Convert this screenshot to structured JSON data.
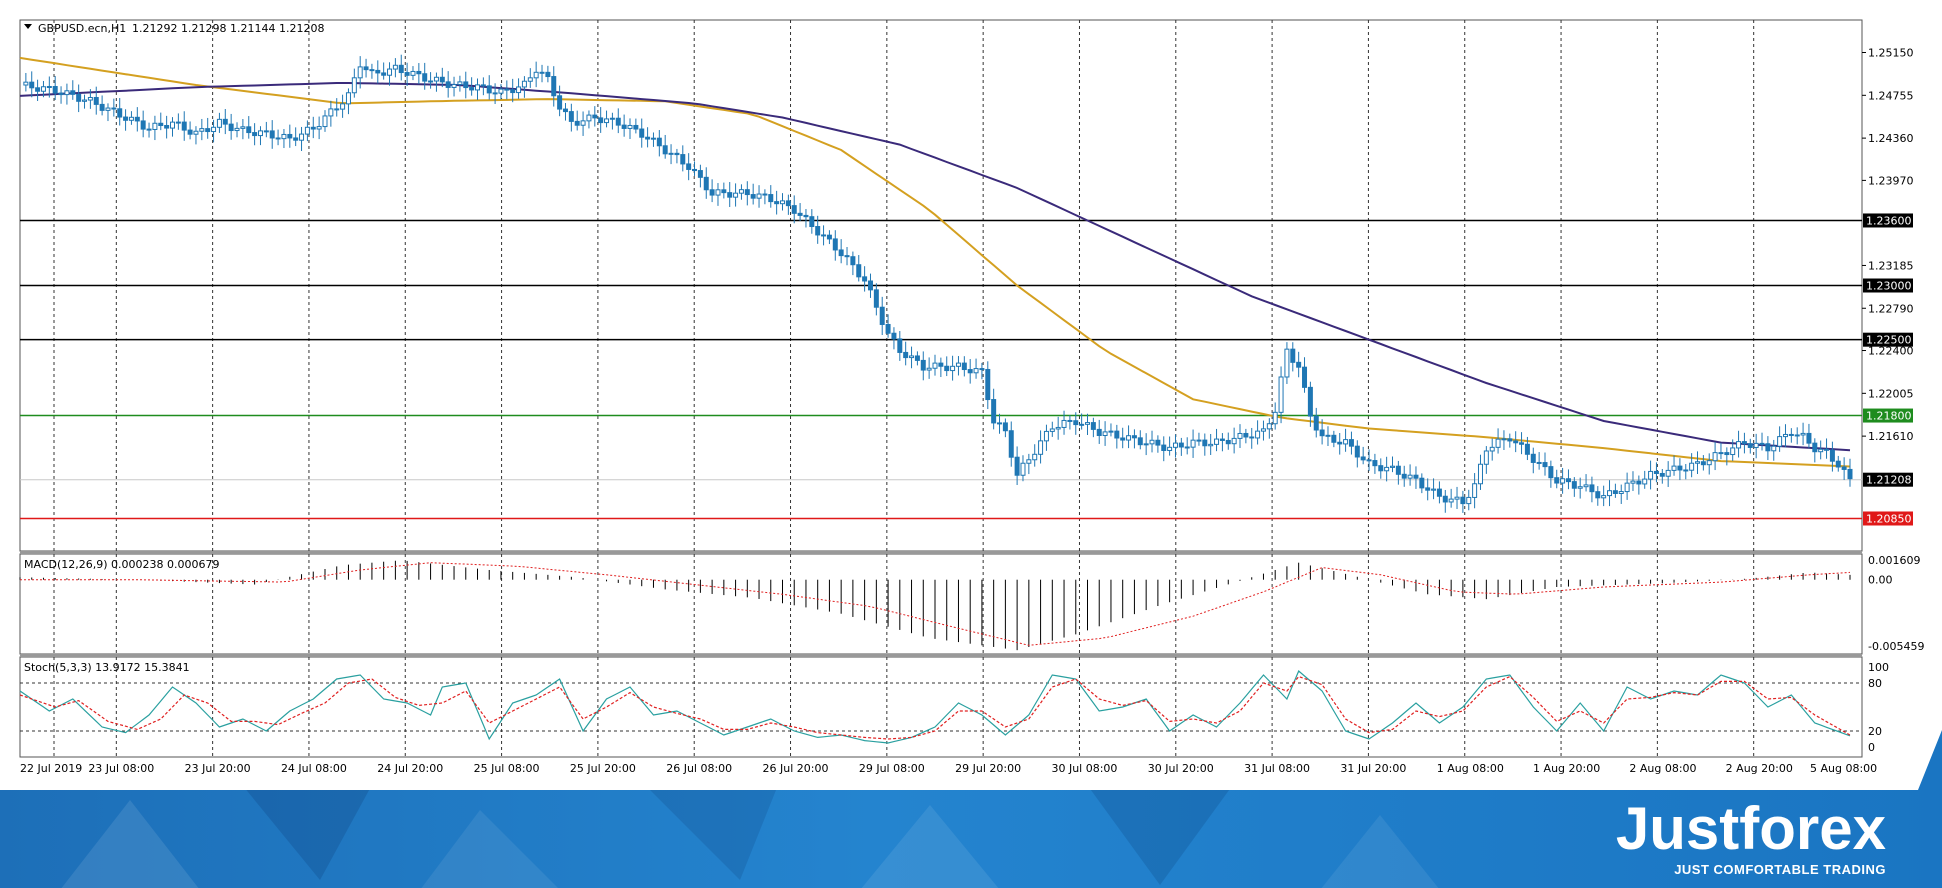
{
  "header": {
    "symbol": "GBPUSD.ecn,H1",
    "ohlc": "1.21292 1.21298 1.21144 1.21208"
  },
  "chart_data": [
    {
      "type": "candlestick",
      "title": "GBPUSD.ecn,H1  1.21292 1.21298 1.21144 1.21208",
      "ylim": [
        1.2055,
        1.2545
      ],
      "price_ticks": [
        1.2515,
        1.24755,
        1.2436,
        1.2397,
        1.23185,
        1.2279,
        1.224,
        1.22005,
        1.2161
      ],
      "price_tick_labels": [
        "1.25150",
        "1.24755",
        "1.24360",
        "1.23970",
        "1.23185",
        "1.22790",
        "1.22400",
        "1.22005",
        "1.21610"
      ],
      "time_labels": [
        "22 Jul 2019",
        "23 Jul 08:00",
        "23 Jul 20:00",
        "24 Jul 08:00",
        "24 Jul 20:00",
        "25 Jul 08:00",
        "25 Jul 20:00",
        "26 Jul 08:00",
        "26 Jul 20:00",
        "29 Jul 08:00",
        "29 Jul 20:00",
        "30 Jul 08:00",
        "30 Jul 20:00",
        "31 Jul 08:00",
        "31 Jul 20:00",
        "1 Aug 08:00",
        "1 Aug 20:00",
        "2 Aug 08:00",
        "2 Aug 20:00",
        "5 Aug 08:00"
      ],
      "levels": [
        {
          "value": 1.236,
          "label": "1.23600",
          "color": "#000000"
        },
        {
          "value": 1.23,
          "label": "1.23000",
          "color": "#000000"
        },
        {
          "value": 1.225,
          "label": "1.22500",
          "color": "#000000"
        },
        {
          "value": 1.218,
          "label": "1.21800",
          "color": "#1e8c1e"
        },
        {
          "value": 1.2085,
          "label": "1.20850",
          "color": "#e01818"
        }
      ],
      "current_price": {
        "value": 1.21208,
        "label": "1.21208"
      },
      "candle_color": "#1f77b4",
      "close_path": [
        [
          0,
          1.2485
        ],
        [
          6,
          1.248
        ],
        [
          12,
          1.247
        ],
        [
          18,
          1.2455
        ],
        [
          22,
          1.2445
        ],
        [
          26,
          1.245
        ],
        [
          30,
          1.244
        ],
        [
          34,
          1.245
        ],
        [
          38,
          1.2443
        ],
        [
          42,
          1.244
        ],
        [
          46,
          1.2435
        ],
        [
          50,
          1.2445
        ],
        [
          56,
          1.2475
        ],
        [
          58,
          1.2505
        ],
        [
          60,
          1.2495
        ],
        [
          64,
          1.25
        ],
        [
          70,
          1.249
        ],
        [
          74,
          1.2485
        ],
        [
          78,
          1.2483
        ],
        [
          82,
          1.2478
        ],
        [
          86,
          1.2485
        ],
        [
          88,
          1.25
        ],
        [
          90,
          1.249
        ],
        [
          92,
          1.2465
        ],
        [
          94,
          1.245
        ],
        [
          98,
          1.2455
        ],
        [
          102,
          1.245
        ],
        [
          106,
          1.244
        ],
        [
          110,
          1.2425
        ],
        [
          114,
          1.241
        ],
        [
          118,
          1.2385
        ],
        [
          124,
          1.2385
        ],
        [
          128,
          1.238
        ],
        [
          132,
          1.237
        ],
        [
          136,
          1.235
        ],
        [
          140,
          1.233
        ],
        [
          144,
          1.2305
        ],
        [
          148,
          1.2255
        ],
        [
          150,
          1.224
        ],
        [
          154,
          1.2225
        ],
        [
          160,
          1.2225
        ],
        [
          164,
          1.222
        ],
        [
          166,
          1.2175
        ],
        [
          168,
          1.2165
        ],
        [
          170,
          1.2125
        ],
        [
          172,
          1.214
        ],
        [
          174,
          1.2155
        ],
        [
          176,
          1.217
        ],
        [
          180,
          1.2175
        ],
        [
          184,
          1.2165
        ],
        [
          188,
          1.216
        ],
        [
          192,
          1.2155
        ],
        [
          196,
          1.215
        ],
        [
          200,
          1.2155
        ],
        [
          204,
          1.2155
        ],
        [
          208,
          1.216
        ],
        [
          212,
          1.2165
        ],
        [
          214,
          1.2185
        ],
        [
          216,
          1.224
        ],
        [
          218,
          1.2225
        ],
        [
          220,
          1.218
        ],
        [
          222,
          1.216
        ],
        [
          226,
          1.2155
        ],
        [
          230,
          1.2135
        ],
        [
          234,
          1.213
        ],
        [
          238,
          1.212
        ],
        [
          242,
          1.2105
        ],
        [
          246,
          1.21
        ],
        [
          248,
          1.2115
        ],
        [
          250,
          1.215
        ],
        [
          254,
          1.216
        ],
        [
          258,
          1.214
        ],
        [
          262,
          1.212
        ],
        [
          266,
          1.2115
        ],
        [
          270,
          1.2105
        ],
        [
          274,
          1.2115
        ],
        [
          278,
          1.2125
        ],
        [
          282,
          1.213
        ],
        [
          286,
          1.2135
        ],
        [
          290,
          1.2145
        ],
        [
          294,
          1.2155
        ],
        [
          298,
          1.215
        ],
        [
          302,
          1.2165
        ],
        [
          304,
          1.216
        ],
        [
          306,
          1.215
        ],
        [
          308,
          1.2145
        ],
        [
          310,
          1.2135
        ],
        [
          312,
          1.212
        ]
      ],
      "series": [
        {
          "name": "",
          "color": "#d4a020",
          "values": [
            [
              0,
              1.251
            ],
            [
              30,
              1.2485
            ],
            [
              55,
              1.2468
            ],
            [
              70,
              1.247
            ],
            [
              90,
              1.2472
            ],
            [
              110,
              1.247
            ],
            [
              125,
              1.2458
            ],
            [
              140,
              1.2425
            ],
            [
              155,
              1.237
            ],
            [
              170,
              1.23
            ],
            [
              185,
              1.224
            ],
            [
              200,
              1.2195
            ],
            [
              215,
              1.2178
            ],
            [
              230,
              1.2168
            ],
            [
              250,
              1.216
            ],
            [
              270,
              1.215
            ],
            [
              290,
              1.2138
            ],
            [
              312,
              1.2133
            ]
          ]
        },
        {
          "name": "",
          "color": "#3a2a7a",
          "values": [
            [
              0,
              1.2475
            ],
            [
              30,
              1.2483
            ],
            [
              55,
              1.2487
            ],
            [
              75,
              1.2485
            ],
            [
              95,
              1.2477
            ],
            [
              115,
              1.2468
            ],
            [
              130,
              1.2455
            ],
            [
              150,
              1.243
            ],
            [
              170,
              1.239
            ],
            [
              190,
              1.234
            ],
            [
              210,
              1.229
            ],
            [
              230,
              1.225
            ],
            [
              250,
              1.221
            ],
            [
              270,
              1.2175
            ],
            [
              290,
              1.2155
            ],
            [
              312,
              1.2148
            ]
          ]
        }
      ]
    },
    {
      "type": "bar",
      "title": "MACD(12,26,9) 0.000238 0.000679",
      "ylim": [
        -0.00595,
        0.00195
      ],
      "tick_labels": [
        "0.001609",
        "0.00",
        "-0.005459"
      ],
      "ticks": [
        0.001609,
        0.0,
        -0.005459
      ],
      "histogram": [
        [
          0,
          0.0002
        ],
        [
          20,
          0.0
        ],
        [
          40,
          -0.0004
        ],
        [
          55,
          0.0012
        ],
        [
          65,
          0.0016
        ],
        [
          80,
          0.0008
        ],
        [
          95,
          0.0002
        ],
        [
          110,
          -0.0008
        ],
        [
          125,
          -0.0015
        ],
        [
          140,
          -0.0028
        ],
        [
          155,
          -0.0048
        ],
        [
          170,
          -0.0058
        ],
        [
          180,
          -0.0045
        ],
        [
          195,
          -0.002
        ],
        [
          210,
          0.0002
        ],
        [
          218,
          0.0014
        ],
        [
          225,
          0.0006
        ],
        [
          240,
          -0.0012
        ],
        [
          250,
          -0.0016
        ],
        [
          262,
          -0.0006
        ],
        [
          280,
          -0.0003
        ],
        [
          295,
          0.0001
        ],
        [
          305,
          0.0006
        ],
        [
          312,
          0.0004
        ]
      ],
      "signal": [
        [
          0,
          0.0
        ],
        [
          20,
          0.0
        ],
        [
          45,
          -0.0002
        ],
        [
          58,
          0.0008
        ],
        [
          70,
          0.0014
        ],
        [
          85,
          0.0011
        ],
        [
          100,
          0.0004
        ],
        [
          115,
          -0.0004
        ],
        [
          130,
          -0.0012
        ],
        [
          145,
          -0.0022
        ],
        [
          160,
          -0.004
        ],
        [
          172,
          -0.0054
        ],
        [
          185,
          -0.0048
        ],
        [
          200,
          -0.003
        ],
        [
          212,
          -0.001
        ],
        [
          222,
          0.001
        ],
        [
          232,
          0.0004
        ],
        [
          245,
          -0.001
        ],
        [
          255,
          -0.0012
        ],
        [
          270,
          -0.0006
        ],
        [
          290,
          -0.0002
        ],
        [
          305,
          0.0004
        ],
        [
          312,
          0.0006
        ]
      ]
    },
    {
      "type": "line",
      "title": "Stoch(5,3,3) 13.9172 15.3841",
      "ylim": [
        0,
        100
      ],
      "tick_labels": [
        "100",
        "80",
        "20",
        "0"
      ],
      "ticks": [
        100,
        80,
        20,
        0
      ],
      "main": [
        [
          0,
          70
        ],
        [
          5,
          45
        ],
        [
          9,
          60
        ],
        [
          14,
          25
        ],
        [
          18,
          18
        ],
        [
          22,
          40
        ],
        [
          26,
          75
        ],
        [
          30,
          55
        ],
        [
          34,
          25
        ],
        [
          38,
          35
        ],
        [
          42,
          20
        ],
        [
          46,
          45
        ],
        [
          50,
          60
        ],
        [
          54,
          85
        ],
        [
          58,
          90
        ],
        [
          62,
          60
        ],
        [
          66,
          55
        ],
        [
          70,
          40
        ],
        [
          72,
          75
        ],
        [
          76,
          80
        ],
        [
          80,
          10
        ],
        [
          84,
          55
        ],
        [
          88,
          65
        ],
        [
          92,
          85
        ],
        [
          96,
          20
        ],
        [
          100,
          60
        ],
        [
          104,
          75
        ],
        [
          108,
          40
        ],
        [
          112,
          45
        ],
        [
          116,
          30
        ],
        [
          120,
          15
        ],
        [
          124,
          25
        ],
        [
          128,
          35
        ],
        [
          132,
          20
        ],
        [
          136,
          12
        ],
        [
          140,
          15
        ],
        [
          144,
          8
        ],
        [
          148,
          5
        ],
        [
          152,
          12
        ],
        [
          156,
          25
        ],
        [
          160,
          55
        ],
        [
          164,
          40
        ],
        [
          168,
          15
        ],
        [
          172,
          40
        ],
        [
          176,
          90
        ],
        [
          180,
          85
        ],
        [
          184,
          45
        ],
        [
          188,
          50
        ],
        [
          192,
          60
        ],
        [
          196,
          20
        ],
        [
          200,
          40
        ],
        [
          204,
          25
        ],
        [
          208,
          55
        ],
        [
          212,
          90
        ],
        [
          216,
          60
        ],
        [
          218,
          95
        ],
        [
          222,
          70
        ],
        [
          226,
          20
        ],
        [
          230,
          10
        ],
        [
          234,
          30
        ],
        [
          238,
          55
        ],
        [
          242,
          30
        ],
        [
          246,
          50
        ],
        [
          250,
          85
        ],
        [
          254,
          90
        ],
        [
          258,
          50
        ],
        [
          262,
          20
        ],
        [
          266,
          55
        ],
        [
          270,
          20
        ],
        [
          274,
          75
        ],
        [
          278,
          60
        ],
        [
          282,
          70
        ],
        [
          286,
          65
        ],
        [
          290,
          90
        ],
        [
          294,
          80
        ],
        [
          298,
          50
        ],
        [
          302,
          65
        ],
        [
          306,
          30
        ],
        [
          312,
          14
        ]
      ],
      "signal": [
        [
          0,
          65
        ],
        [
          6,
          50
        ],
        [
          10,
          58
        ],
        [
          15,
          32
        ],
        [
          20,
          22
        ],
        [
          24,
          35
        ],
        [
          28,
          65
        ],
        [
          32,
          55
        ],
        [
          36,
          32
        ],
        [
          40,
          32
        ],
        [
          44,
          28
        ],
        [
          48,
          42
        ],
        [
          52,
          55
        ],
        [
          56,
          80
        ],
        [
          60,
          85
        ],
        [
          64,
          62
        ],
        [
          68,
          52
        ],
        [
          72,
          55
        ],
        [
          76,
          70
        ],
        [
          80,
          30
        ],
        [
          84,
          45
        ],
        [
          88,
          60
        ],
        [
          92,
          75
        ],
        [
          96,
          35
        ],
        [
          100,
          50
        ],
        [
          104,
          68
        ],
        [
          108,
          50
        ],
        [
          112,
          42
        ],
        [
          116,
          35
        ],
        [
          120,
          22
        ],
        [
          124,
          22
        ],
        [
          128,
          30
        ],
        [
          132,
          25
        ],
        [
          136,
          18
        ],
        [
          140,
          15
        ],
        [
          144,
          12
        ],
        [
          148,
          10
        ],
        [
          152,
          12
        ],
        [
          156,
          20
        ],
        [
          160,
          45
        ],
        [
          164,
          45
        ],
        [
          168,
          25
        ],
        [
          172,
          35
        ],
        [
          176,
          75
        ],
        [
          180,
          85
        ],
        [
          184,
          60
        ],
        [
          188,
          52
        ],
        [
          192,
          58
        ],
        [
          196,
          32
        ],
        [
          200,
          35
        ],
        [
          204,
          30
        ],
        [
          208,
          45
        ],
        [
          212,
          80
        ],
        [
          216,
          70
        ],
        [
          218,
          88
        ],
        [
          222,
          78
        ],
        [
          226,
          35
        ],
        [
          230,
          18
        ],
        [
          234,
          22
        ],
        [
          238,
          45
        ],
        [
          242,
          38
        ],
        [
          246,
          45
        ],
        [
          250,
          75
        ],
        [
          254,
          88
        ],
        [
          258,
          62
        ],
        [
          262,
          32
        ],
        [
          266,
          45
        ],
        [
          270,
          30
        ],
        [
          274,
          60
        ],
        [
          278,
          62
        ],
        [
          282,
          68
        ],
        [
          286,
          65
        ],
        [
          290,
          82
        ],
        [
          294,
          82
        ],
        [
          298,
          60
        ],
        [
          302,
          62
        ],
        [
          306,
          40
        ],
        [
          312,
          15
        ]
      ]
    }
  ],
  "brand": {
    "name": "Justforex",
    "tagline": "JUST COMFORTABLE TRADING"
  }
}
